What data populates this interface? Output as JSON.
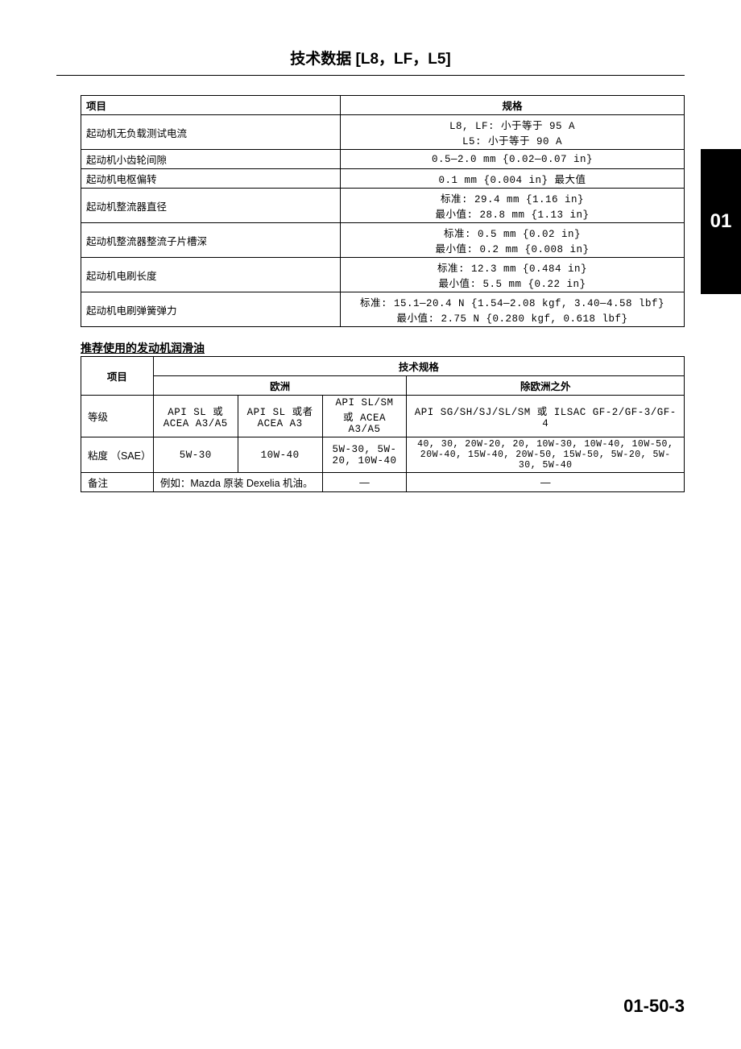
{
  "page": {
    "title": "技术数据 [L8，LF，L5]",
    "side_tab": "01",
    "footer": "01-50-3"
  },
  "table1": {
    "headers": {
      "item": "项目",
      "spec": "规格"
    },
    "rows": [
      {
        "item": "起动机无负载测试电流",
        "spec": "L8, LF: 小于等于 95 A\nL5: 小于等于 90 A"
      },
      {
        "item": "起动机小齿轮间隙",
        "spec": "0.5—2.0 mm {0.02—0.07 in}"
      },
      {
        "item": "起动机电枢偏转",
        "spec": "0.1 mm {0.004 in} 最大值"
      },
      {
        "item": "起动机整流器直径",
        "spec": "标准: 29.4 mm {1.16 in}\n最小值: 28.8 mm {1.13 in}"
      },
      {
        "item": "起动机整流器整流子片槽深",
        "spec": "标准: 0.5 mm {0.02 in}\n最小值: 0.2 mm {0.008 in}"
      },
      {
        "item": "起动机电刷长度",
        "spec": "标准: 12.3 mm {0.484 in}\n最小值: 5.5 mm {0.22 in}"
      },
      {
        "item": "起动机电刷弹簧弹力",
        "spec": "标准: 15.1—20.4 N {1.54—2.08 kgf, 3.40—4.58 lbf}\n最小值: 2.75 N {0.280 kgf, 0.618 lbf}"
      }
    ]
  },
  "section2_title": "推荐使用的发动机润滑油",
  "table2": {
    "headers": {
      "item": "项目",
      "tech_spec": "技术规格",
      "europe": "欧洲",
      "non_europe": "除欧洲之外"
    },
    "rows": [
      {
        "label": "等级",
        "e1": "API SL 或 ACEA A3/A5",
        "e2": "API SL 或者 ACEA A3",
        "e3": "API SL/SM 或 ACEA A3/A5",
        "ne": "API SG/SH/SJ/SL/SM 或 ILSAC GF-2/GF-3/GF-4"
      },
      {
        "label": "粘度 （SAE）",
        "e1": "5W-30",
        "e2": "10W-40",
        "e3": "5W-30, 5W-20, 10W-40",
        "ne": "40, 30, 20W-20, 20, 10W-30, 10W-40, 10W-50, 20W-40, 15W-40, 20W-50, 15W-50, 5W-20, 5W-30, 5W-40"
      },
      {
        "label": "备注",
        "e1": "例如：Mazda 原装 Dexelia 机油。",
        "e3": "—",
        "ne": "—"
      }
    ]
  }
}
